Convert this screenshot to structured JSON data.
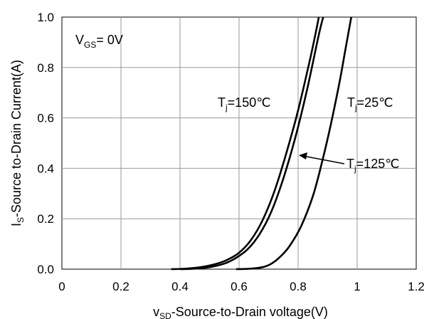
{
  "chart_data": {
    "type": "line",
    "xlabel": {
      "main": "v",
      "sub": "SD",
      "rest": "-Source-to-Drain voltage(V)"
    },
    "ylabel": {
      "main": "I",
      "sub": "S",
      "rest": "-Source  to-Drain Current(A)"
    },
    "xlim": [
      0,
      1.2
    ],
    "ylim": [
      0,
      1.0
    ],
    "xticks": [
      "0",
      "0.2",
      "0.4",
      "0.6",
      "0.8",
      "1",
      "1.2"
    ],
    "yticks": [
      "0.0",
      "0.2",
      "0.4",
      "0.6",
      "0.8",
      "1.0"
    ],
    "grid": true,
    "annotations": {
      "vgs": {
        "main": "V",
        "sub": "GS",
        "rest": "= 0V"
      },
      "t150": {
        "main": "T",
        "sub": "j",
        "rest": "=150℃"
      },
      "t25": {
        "main": "T",
        "sub": "j",
        "rest": "=25℃"
      },
      "t125": {
        "main": "T",
        "sub": "j",
        "rest": "=125℃"
      }
    },
    "series": [
      {
        "x": [
          0.37,
          0.42,
          0.47,
          0.52,
          0.56,
          0.6,
          0.64,
          0.68,
          0.72,
          0.76,
          0.8,
          0.84,
          0.86,
          0.87
        ],
        "y": [
          0.0,
          0.002,
          0.008,
          0.02,
          0.037,
          0.065,
          0.115,
          0.195,
          0.31,
          0.46,
          0.63,
          0.83,
          0.94,
          1.0
        ]
      },
      {
        "x": [
          0.4,
          0.45,
          0.5,
          0.55,
          0.59,
          0.63,
          0.67,
          0.71,
          0.75,
          0.79,
          0.83,
          0.87,
          0.885
        ],
        "y": [
          0.0,
          0.002,
          0.008,
          0.022,
          0.045,
          0.08,
          0.14,
          0.23,
          0.36,
          0.52,
          0.71,
          0.93,
          1.0
        ]
      },
      {
        "x": [
          0.59,
          0.64,
          0.68,
          0.71,
          0.74,
          0.77,
          0.81,
          0.85,
          0.88,
          0.91,
          0.94,
          0.96,
          0.98
        ],
        "y": [
          0.0,
          0.002,
          0.008,
          0.022,
          0.05,
          0.09,
          0.17,
          0.29,
          0.42,
          0.57,
          0.74,
          0.87,
          1.0
        ]
      }
    ]
  }
}
